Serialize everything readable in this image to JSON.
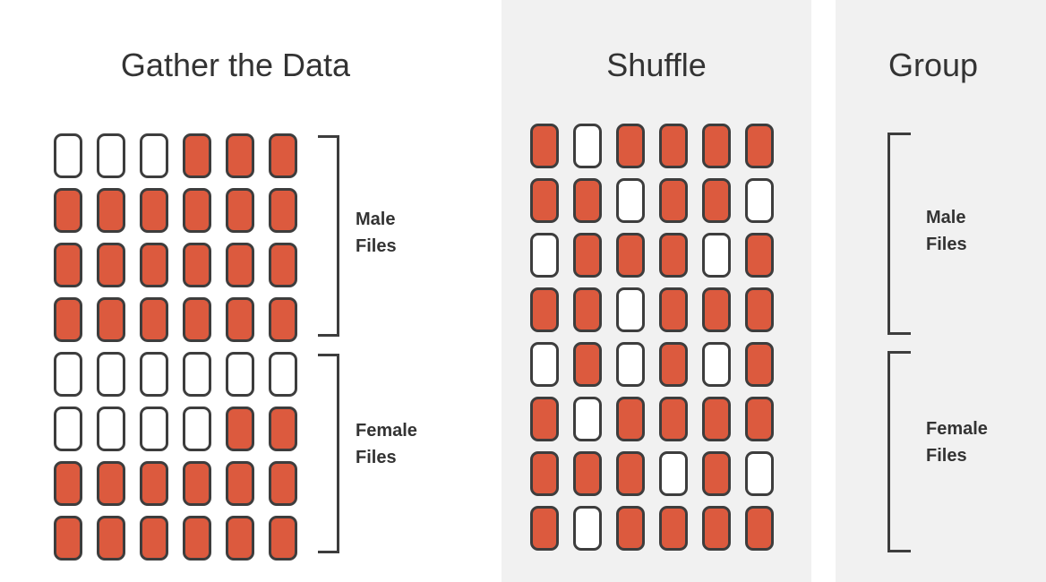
{
  "titles": {
    "gather": "Gather the Data",
    "shuffle": "Shuffle",
    "group": "Group"
  },
  "labels": {
    "male": [
      "Male",
      "Files"
    ],
    "female": [
      "Female",
      "Files"
    ]
  },
  "colors": {
    "filled": "#dc5a3e",
    "empty": "#ffffff",
    "outline": "#3d3d3d",
    "panel_background": "#f1f1f1"
  },
  "grids": {
    "gather": [
      [
        0,
        0,
        0,
        1,
        1,
        1
      ],
      [
        1,
        1,
        1,
        1,
        1,
        1
      ],
      [
        1,
        1,
        1,
        1,
        1,
        1
      ],
      [
        1,
        1,
        1,
        1,
        1,
        1
      ],
      [
        0,
        0,
        0,
        0,
        0,
        0
      ],
      [
        0,
        0,
        0,
        0,
        1,
        1
      ],
      [
        1,
        1,
        1,
        1,
        1,
        1
      ],
      [
        1,
        1,
        1,
        1,
        1,
        1
      ]
    ],
    "shuffle": [
      [
        1,
        0,
        1,
        1,
        1,
        1
      ],
      [
        1,
        1,
        0,
        1,
        1,
        0
      ],
      [
        0,
        1,
        1,
        1,
        0,
        1
      ],
      [
        1,
        1,
        0,
        1,
        1,
        1
      ],
      [
        0,
        1,
        0,
        1,
        0,
        1
      ],
      [
        1,
        0,
        1,
        1,
        1,
        1
      ],
      [
        1,
        1,
        1,
        0,
        1,
        0
      ],
      [
        1,
        0,
        1,
        1,
        1,
        1
      ]
    ]
  }
}
